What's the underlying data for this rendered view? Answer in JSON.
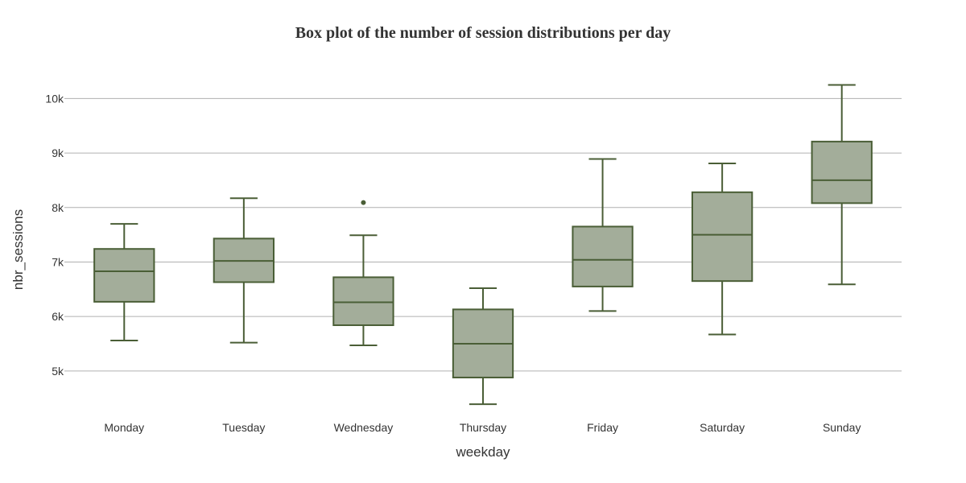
{
  "chart_data": {
    "type": "box",
    "title": "Box plot of the number of session distributions per day",
    "xlabel": "weekday",
    "ylabel": "nbr_sessions",
    "ylim": [
      4200,
      10700
    ],
    "yticks": [
      5000,
      6000,
      7000,
      8000,
      9000,
      10000
    ],
    "ytick_labels": [
      "5k",
      "6k",
      "7k",
      "8k",
      "9k",
      "10k"
    ],
    "grid": true,
    "box_fill": "#a3ad9a",
    "box_stroke": "#4a5e36",
    "categories": [
      "Monday",
      "Tuesday",
      "Wednesday",
      "Thursday",
      "Friday",
      "Saturday",
      "Sunday"
    ],
    "boxes": [
      {
        "label": "Monday",
        "min": 5560,
        "q1": 6270,
        "median": 6830,
        "q3": 7240,
        "max": 7700,
        "outliers": []
      },
      {
        "label": "Tuesday",
        "min": 5520,
        "q1": 6630,
        "median": 7020,
        "q3": 7430,
        "max": 8170,
        "outliers": []
      },
      {
        "label": "Wednesday",
        "min": 5470,
        "q1": 5840,
        "median": 6260,
        "q3": 6720,
        "max": 7490,
        "outliers": [
          8090
        ]
      },
      {
        "label": "Thursday",
        "min": 4390,
        "q1": 4880,
        "median": 5500,
        "q3": 6130,
        "max": 6520,
        "outliers": []
      },
      {
        "label": "Friday",
        "min": 6100,
        "q1": 6550,
        "median": 7040,
        "q3": 7650,
        "max": 8890,
        "outliers": []
      },
      {
        "label": "Saturday",
        "min": 5670,
        "q1": 6650,
        "median": 7500,
        "q3": 8280,
        "max": 8810,
        "outliers": []
      },
      {
        "label": "Sunday",
        "min": 6590,
        "q1": 8080,
        "median": 8500,
        "q3": 9210,
        "max": 10250,
        "outliers": []
      }
    ]
  }
}
